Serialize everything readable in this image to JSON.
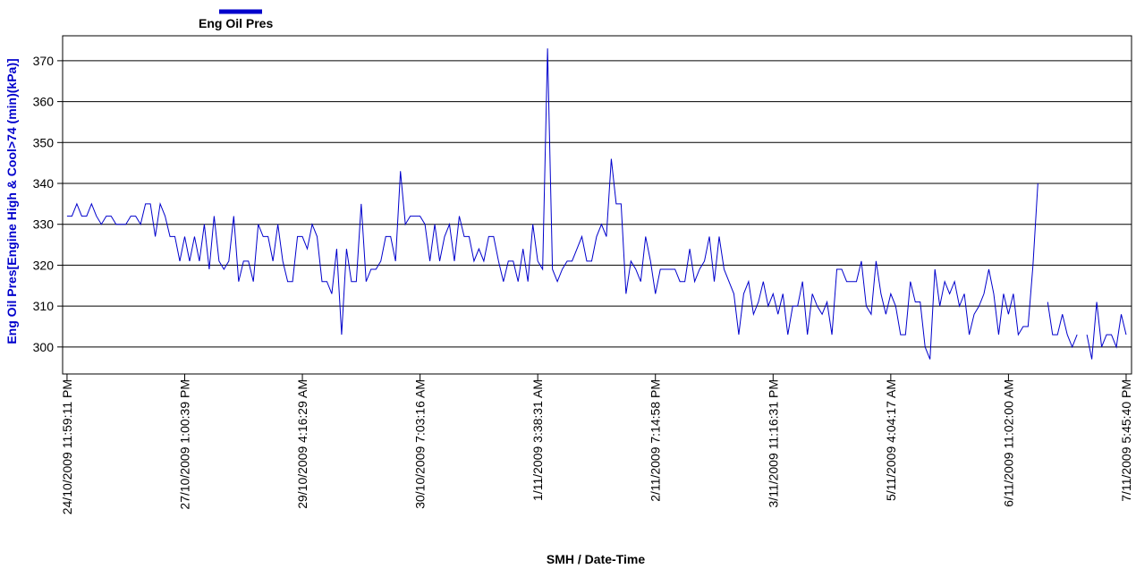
{
  "chart_data": {
    "type": "line",
    "title": null,
    "x_label": "SMH / Date-Time",
    "y_label": "Eng Oil Pres[Engine High & Cool>74 (min)(kPa)]",
    "series": [
      {
        "name": "Eng Oil Pres",
        "color": "#0000cc",
        "values": [
          332,
          332,
          335,
          332,
          332,
          335,
          332,
          330,
          332,
          332,
          330,
          330,
          330,
          332,
          332,
          330,
          335,
          335,
          327,
          335,
          332,
          327,
          327,
          321,
          327,
          321,
          327,
          321,
          330,
          319,
          332,
          321,
          319,
          321,
          332,
          316,
          321,
          321,
          316,
          330,
          327,
          327,
          321,
          330,
          321,
          316,
          316,
          327,
          327,
          324,
          330,
          327,
          316,
          316,
          313,
          324,
          303,
          324,
          316,
          316,
          335,
          316,
          319,
          319,
          321,
          327,
          327,
          321,
          343,
          330,
          332,
          332,
          332,
          330,
          321,
          330,
          321,
          327,
          330,
          321,
          332,
          327,
          327,
          321,
          324,
          321,
          327,
          327,
          321,
          316,
          321,
          321,
          316,
          324,
          316,
          330,
          321,
          319,
          373,
          319,
          316,
          319,
          321,
          321,
          324,
          327,
          321,
          321,
          327,
          330,
          327,
          346,
          335,
          335,
          313,
          321,
          319,
          316,
          327,
          321,
          313,
          319,
          319,
          319,
          319,
          316,
          316,
          324,
          316,
          319,
          321,
          327,
          316,
          327,
          319,
          316,
          313,
          303,
          313,
          316,
          308,
          311,
          316,
          310,
          313,
          308,
          313,
          303,
          310,
          310,
          316,
          303,
          313,
          310,
          308,
          311,
          303,
          319,
          319,
          316,
          316,
          316,
          321,
          310,
          308,
          321,
          313,
          308,
          313,
          310,
          303,
          303,
          316,
          311,
          311,
          300,
          297,
          319,
          310,
          316,
          313,
          316,
          310,
          313,
          303,
          308,
          310,
          313,
          319,
          313,
          303,
          313,
          308,
          313,
          303,
          305,
          305,
          320,
          340,
          null,
          311,
          303,
          303,
          308,
          303,
          300,
          303,
          null,
          303,
          297,
          311,
          300,
          303,
          303,
          300,
          308,
          303
        ]
      }
    ],
    "xlim": [
      -0.9,
      217.1
    ],
    "xticks": [
      {
        "value": 0,
        "label": "24/10/2009 11:59:11 PM"
      },
      {
        "value": 24,
        "label": "27/10/2009 1:00:39 PM"
      },
      {
        "value": 48,
        "label": "29/10/2009 4:16:29 AM"
      },
      {
        "value": 72,
        "label": "30/10/2009 7:03:16 AM"
      },
      {
        "value": 96,
        "label": "1/11/2009 3:38:31 AM"
      },
      {
        "value": 120,
        "label": "2/11/2009 7:14:58 PM"
      },
      {
        "value": 144,
        "label": "3/11/2009 11:16:31 PM"
      },
      {
        "value": 168,
        "label": "5/11/2009 4:04:17 AM"
      },
      {
        "value": 192,
        "label": "6/11/2009 11:02:00 AM"
      },
      {
        "value": 216,
        "label": "7/11/2009 5:45:40 PM"
      }
    ],
    "ylim": [
      293.4,
      376.1
    ],
    "yticks": [
      300,
      310,
      320,
      330,
      340,
      350,
      360,
      370
    ],
    "grid": true
  }
}
